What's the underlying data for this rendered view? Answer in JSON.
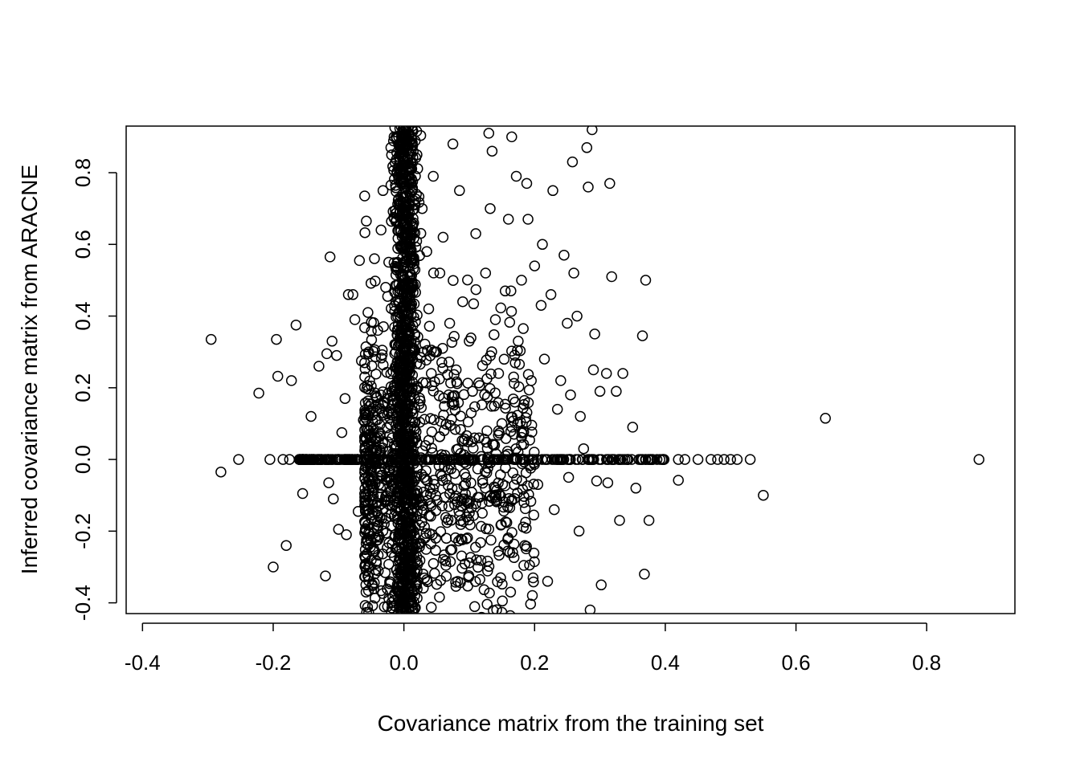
{
  "chart_data": {
    "type": "scatter",
    "title": "",
    "xlabel": "Covariance matrix from the training set",
    "ylabel": "Inferred covariance matrix from ARACNE",
    "xlim": [
      -0.425,
      0.935
    ],
    "ylim": [
      -0.43,
      0.93
    ],
    "xticks": [
      -0.4,
      -0.2,
      0.0,
      0.2,
      0.4,
      0.6,
      0.8
    ],
    "xtick_labels": [
      "-0.4",
      "-0.2",
      "0.0",
      "0.2",
      "0.4",
      "0.6",
      "0.8"
    ],
    "yticks": [
      -0.4,
      -0.2,
      0.0,
      0.2,
      0.4,
      0.6,
      0.8
    ],
    "ytick_labels": [
      "-0.4",
      "-0.2",
      "0.0",
      "0.2",
      "0.4",
      "0.6",
      "0.8"
    ],
    "grid": false,
    "legend": "none",
    "marker": "open-circle",
    "series": [
      {
        "points": [
          [
            -0.295,
            0.335
          ],
          [
            -0.28,
            -0.035
          ],
          [
            -0.253,
            0.0
          ],
          [
            -0.222,
            0.185
          ],
          [
            -0.2,
            -0.3
          ],
          [
            -0.195,
            0.335
          ],
          [
            -0.193,
            0.232
          ],
          [
            -0.18,
            -0.24
          ],
          [
            -0.172,
            0.22
          ],
          [
            -0.165,
            0.375
          ],
          [
            -0.155,
            -0.095
          ],
          [
            -0.142,
            0.12
          ],
          [
            -0.13,
            0.26
          ],
          [
            -0.12,
            -0.325
          ],
          [
            -0.118,
            0.295
          ],
          [
            -0.115,
            -0.065
          ],
          [
            -0.113,
            0.565
          ],
          [
            -0.11,
            0.33
          ],
          [
            -0.108,
            -0.11
          ],
          [
            -0.103,
            0.29
          ],
          [
            -0.1,
            -0.195
          ],
          [
            -0.095,
            0.075
          ],
          [
            -0.09,
            0.17
          ],
          [
            -0.088,
            -0.21
          ],
          [
            -0.085,
            0.46
          ],
          [
            -0.078,
            0.46
          ],
          [
            -0.075,
            0.39
          ],
          [
            -0.07,
            -0.145
          ],
          [
            -0.068,
            0.555
          ],
          [
            -0.065,
            0.275
          ],
          [
            -0.062,
            0.11
          ],
          [
            -0.06,
            0.735
          ],
          [
            -0.058,
            -0.37
          ],
          [
            -0.055,
            0.41
          ],
          [
            -0.05,
            0.205
          ],
          [
            -0.048,
            -0.06
          ],
          [
            -0.045,
            0.56
          ],
          [
            -0.042,
            -0.29
          ],
          [
            -0.04,
            0.36
          ],
          [
            -0.035,
            0.64
          ],
          [
            -0.032,
            0.75
          ],
          [
            -0.03,
            -0.18
          ],
          [
            -0.028,
            0.48
          ],
          [
            -0.025,
            -0.41
          ],
          [
            -0.02,
            0.87
          ],
          [
            -0.018,
            0.06
          ],
          [
            -0.015,
            0.9
          ],
          [
            -0.012,
            0.53
          ],
          [
            -0.01,
            -0.25
          ],
          [
            -0.008,
            0.78
          ],
          [
            0.015,
            0.66
          ],
          [
            0.02,
            0.85
          ],
          [
            0.028,
            0.7
          ],
          [
            0.035,
            0.58
          ],
          [
            0.038,
            0.42
          ],
          [
            0.045,
            0.79
          ],
          [
            0.05,
            0.3
          ],
          [
            0.055,
            0.52
          ],
          [
            0.06,
            0.62
          ],
          [
            0.065,
            -0.22
          ],
          [
            0.07,
            0.38
          ],
          [
            0.075,
            0.88
          ],
          [
            0.08,
            0.25
          ],
          [
            0.085,
            0.75
          ],
          [
            0.09,
            0.44
          ],
          [
            0.095,
            -0.05
          ],
          [
            0.1,
            0.33
          ],
          [
            0.105,
            0.19
          ],
          [
            0.11,
            0.63
          ],
          [
            0.115,
            0.06
          ],
          [
            0.12,
            -0.15
          ],
          [
            0.125,
            0.52
          ],
          [
            0.13,
            0.91
          ],
          [
            0.132,
            0.7
          ],
          [
            0.135,
            0.86
          ],
          [
            0.14,
            0.39
          ],
          [
            0.145,
            0.24
          ],
          [
            0.148,
            -0.33
          ],
          [
            0.15,
            0.1
          ],
          [
            0.155,
            0.47
          ],
          [
            0.16,
            0.67
          ],
          [
            0.162,
            -0.26
          ],
          [
            0.165,
            0.9
          ],
          [
            0.168,
            0.23
          ],
          [
            0.17,
            0.16
          ],
          [
            0.172,
            0.79
          ],
          [
            0.175,
            0.33
          ],
          [
            0.18,
            0.5
          ],
          [
            0.185,
            -0.24
          ],
          [
            0.188,
            0.77
          ],
          [
            0.19,
            0.67
          ],
          [
            0.195,
            0.22
          ],
          [
            0.2,
            0.54
          ],
          [
            0.205,
            -0.07
          ],
          [
            0.21,
            0.43
          ],
          [
            0.212,
            0.6
          ],
          [
            0.215,
            0.28
          ],
          [
            0.22,
            -0.34
          ],
          [
            0.225,
            0.46
          ],
          [
            0.228,
            0.75
          ],
          [
            0.23,
            -0.14
          ],
          [
            0.235,
            0.14
          ],
          [
            0.24,
            0.22
          ],
          [
            0.245,
            0.57
          ],
          [
            0.25,
            0.38
          ],
          [
            0.252,
            -0.05
          ],
          [
            0.255,
            0.18
          ],
          [
            0.258,
            0.83
          ],
          [
            0.26,
            0.52
          ],
          [
            0.265,
            0.4
          ],
          [
            0.268,
            -0.2
          ],
          [
            0.27,
            0.12
          ],
          [
            0.275,
            0.03
          ],
          [
            0.28,
            0.87
          ],
          [
            0.282,
            0.76
          ],
          [
            0.285,
            -0.42
          ],
          [
            0.288,
            0.92
          ],
          [
            0.29,
            0.25
          ],
          [
            0.292,
            0.35
          ],
          [
            0.295,
            -0.06
          ],
          [
            0.3,
            0.19
          ],
          [
            0.302,
            -0.35
          ],
          [
            0.31,
            0.24
          ],
          [
            0.312,
            -0.065
          ],
          [
            0.315,
            0.77
          ],
          [
            0.318,
            0.51
          ],
          [
            0.325,
            0.19
          ],
          [
            0.33,
            -0.17
          ],
          [
            0.335,
            0.24
          ],
          [
            0.35,
            0.09
          ],
          [
            0.355,
            -0.08
          ],
          [
            0.365,
            0.345
          ],
          [
            0.368,
            -0.32
          ],
          [
            0.37,
            0.5
          ],
          [
            0.375,
            -0.17
          ],
          [
            0.42,
            -0.058
          ],
          [
            0.55,
            -0.1
          ],
          [
            0.645,
            0.115
          ],
          [
            -0.205,
            0.0
          ],
          [
            -0.185,
            0.0
          ],
          [
            -0.175,
            0.0
          ],
          [
            -0.16,
            0.0
          ],
          [
            -0.145,
            0.0
          ],
          [
            -0.13,
            0.0
          ],
          [
            -0.115,
            0.0
          ],
          [
            -0.1,
            0.0
          ],
          [
            -0.085,
            0.0
          ],
          [
            -0.07,
            0.0
          ],
          [
            -0.055,
            0.0
          ],
          [
            0.42,
            0.0
          ],
          [
            0.43,
            0.0
          ],
          [
            0.45,
            0.0
          ],
          [
            0.47,
            0.0
          ],
          [
            0.48,
            0.0
          ],
          [
            0.49,
            0.0
          ],
          [
            0.5,
            0.0
          ],
          [
            0.51,
            0.0
          ],
          [
            0.53,
            0.0
          ],
          [
            0.88,
            0.0
          ]
        ],
        "vertical_band": {
          "x_center": 0.002,
          "x_spread": 0.018,
          "y_range": [
            -0.43,
            0.93
          ],
          "count": 1100
        },
        "horizontal_band": {
          "x_range": [
            -0.16,
            0.4
          ],
          "y_center": 0.0,
          "count": 320
        },
        "core_cloud": {
          "x_range": [
            -0.06,
            0.2
          ],
          "y_range": [
            -0.4,
            0.3
          ],
          "count": 900
        }
      }
    ]
  }
}
